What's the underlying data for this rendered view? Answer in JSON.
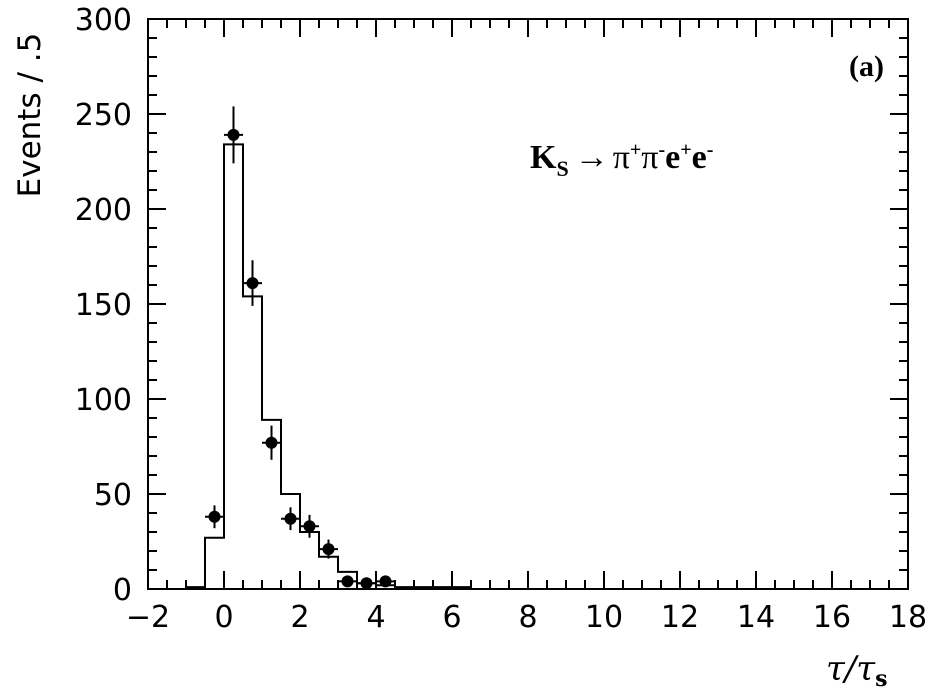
{
  "chart_data": {
    "type": "histogram",
    "ylabel": "Events / .5",
    "xlabel": "τ/τs",
    "xlabel_parts": {
      "main": "τ/τ",
      "sub": "s"
    },
    "panel_label": "(a)",
    "annotation": {
      "K": "K",
      "K_sub": "S",
      "arrow": "→",
      "pi1": "π",
      "pi1_sup": "+",
      "pi2": "π",
      "pi2_sup": "-",
      "e1": "e",
      "e1_sup": "+",
      "e2": "e",
      "e2_sup": "-"
    },
    "xlim": [
      -2,
      18
    ],
    "ylim": [
      0,
      300
    ],
    "x_ticks": [
      "−2",
      "0",
      "2",
      "4",
      "6",
      "8",
      "10",
      "12",
      "14",
      "16",
      "18"
    ],
    "x_tick_values": [
      -2,
      0,
      2,
      4,
      6,
      8,
      10,
      12,
      14,
      16,
      18
    ],
    "y_ticks": [
      "0",
      "50",
      "100",
      "150",
      "200",
      "250",
      "300"
    ],
    "y_tick_values": [
      0,
      50,
      100,
      150,
      200,
      250,
      300
    ],
    "histogram": {
      "bin_width": 0.5,
      "bin_edges_start": -1,
      "values": [
        1,
        27,
        234,
        154,
        89,
        50,
        30,
        17,
        9,
        3,
        2,
        1,
        1,
        1,
        1
      ]
    },
    "points": {
      "x": [
        -0.25,
        0.25,
        0.75,
        1.25,
        1.75,
        2.25,
        2.75,
        3.25,
        3.75,
        4.25
      ],
      "y": [
        38,
        239,
        161,
        77,
        37,
        33,
        21,
        4,
        3,
        4
      ],
      "err": [
        6,
        15,
        12,
        9,
        6,
        6,
        5,
        2,
        2,
        2
      ]
    }
  }
}
